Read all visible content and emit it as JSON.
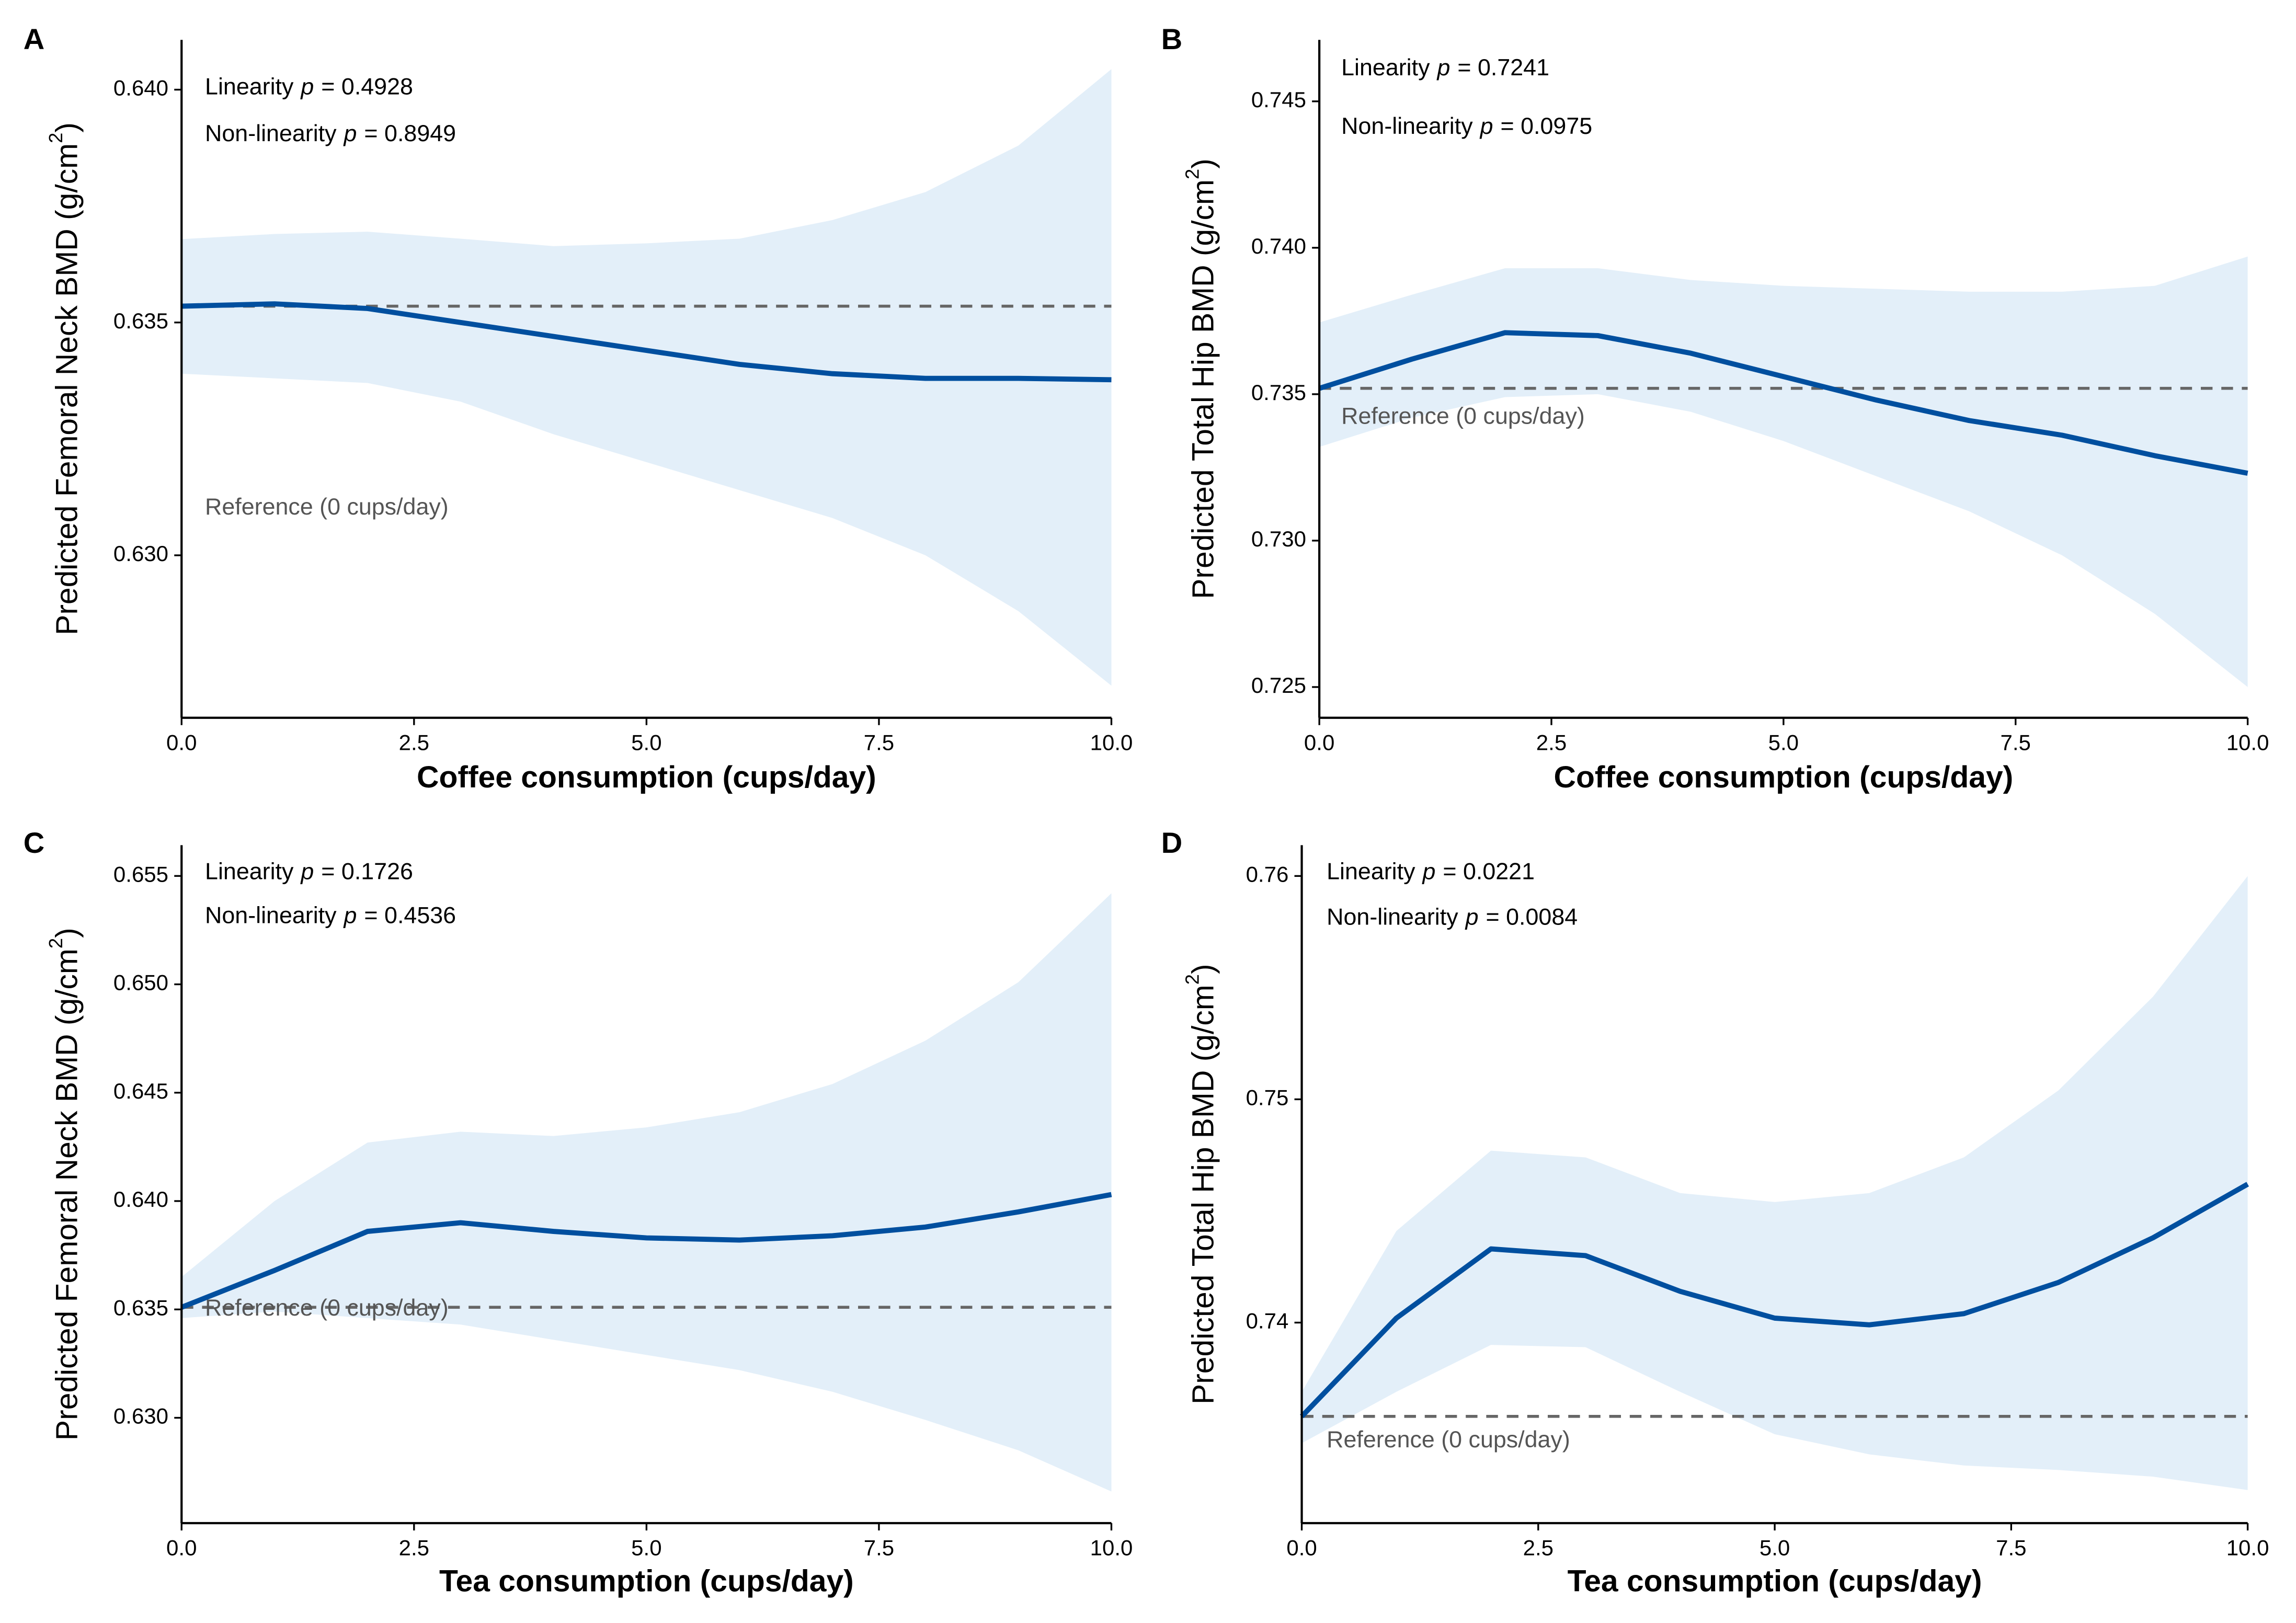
{
  "chart_data": [
    {
      "type": "line",
      "panel": "A",
      "xlabel": "Coffee consumption (cups/day)",
      "ylabel": {
        "text": "Predicted Femoral Neck BMD (g/cm",
        "sup": "2",
        "end": ")"
      },
      "annotations": [
        {
          "text": "Linearity",
          "p": "p",
          "value": "= 0.4928"
        },
        {
          "text": "Non-linearity",
          "p": "p",
          "value": "= 0.8949"
        }
      ],
      "reference_label": "Reference (0 cups/day)",
      "reference": 0.63535,
      "x": [
        0,
        1,
        2,
        3,
        4,
        5,
        6,
        7,
        8,
        9,
        10
      ],
      "values": [
        0.63535,
        0.6354,
        0.6353,
        0.635,
        0.6347,
        0.6344,
        0.6341,
        0.6339,
        0.6338,
        0.6338,
        0.63377
      ],
      "ci_upper": [
        0.63679,
        0.6369,
        0.63695,
        0.6368,
        0.63664,
        0.6367,
        0.6368,
        0.6372,
        0.6378,
        0.6388,
        0.64044
      ],
      "ci_lower": [
        0.6339,
        0.6338,
        0.6337,
        0.6333,
        0.6326,
        0.632,
        0.6314,
        0.6308,
        0.63,
        0.6288,
        0.6272
      ],
      "color": "#004f9f",
      "band_color": "#e3eff9",
      "reference_color": "#666666",
      "xlim": [
        0,
        10
      ],
      "ylim": [
        0.62651,
        0.64107
      ],
      "xticks": [
        {
          "value": 0,
          "label": "0.0"
        },
        2.5,
        {
          "value": 5,
          "label": "5.0"
        },
        7.5,
        {
          "value": 10,
          "label": "10.0"
        }
      ],
      "yticks": [
        {
          "value": 0.63,
          "label": "0.630"
        },
        0.635,
        {
          "value": 0.64,
          "label": "0.640"
        }
      ]
    },
    {
      "type": "line",
      "panel": "B",
      "xlabel": "Coffee consumption (cups/day)",
      "ylabel": {
        "text": "Predicted Total Hip BMD (g/cm",
        "sup": "2",
        "end": ")"
      },
      "annotations": [
        {
          "text": "Linearity",
          "p": "p",
          "value": "= 0.7241"
        },
        {
          "text": "Non-linearity",
          "p": "p",
          "value": "= 0.0975"
        }
      ],
      "reference_label": "Reference (0 cups/day)",
      "reference": 0.7352,
      "x": [
        0,
        1,
        2,
        3,
        4,
        5,
        6,
        7,
        8,
        9,
        10
      ],
      "values": [
        0.7352,
        0.7362,
        0.7371,
        0.737,
        0.7364,
        0.7356,
        0.7348,
        0.7341,
        0.7336,
        0.7329,
        0.7323
      ],
      "ci_upper": [
        0.73745,
        0.7384,
        0.7393,
        0.7393,
        0.7389,
        0.7387,
        0.7386,
        0.7385,
        0.7385,
        0.7387,
        0.7397
      ],
      "ci_lower": [
        0.7332,
        0.7342,
        0.7349,
        0.735,
        0.7344,
        0.7334,
        0.7322,
        0.731,
        0.7295,
        0.7275,
        0.725
      ],
      "color": "#004f9f",
      "band_color": "#e3eff9",
      "reference_color": "#666666",
      "xlim": [
        0,
        10
      ],
      "ylim": [
        0.72395,
        0.7471
      ],
      "xticks": [
        {
          "value": 0,
          "label": "0.0"
        },
        2.5,
        {
          "value": 5,
          "label": "5.0"
        },
        7.5,
        {
          "value": 10,
          "label": "10.0"
        }
      ],
      "yticks": [
        0.725,
        {
          "value": 0.73,
          "label": "0.730"
        },
        0.735,
        {
          "value": 0.74,
          "label": "0.740"
        },
        0.745
      ]
    },
    {
      "type": "line",
      "panel": "C",
      "xlabel": "Tea consumption (cups/day)",
      "ylabel": {
        "text": "Predicted Femoral Neck BMD (g/cm",
        "sup": "2",
        "end": ")"
      },
      "annotations": [
        {
          "text": "Linearity",
          "p": "p",
          "value": "= 0.1726"
        },
        {
          "text": "Non-linearity",
          "p": "p",
          "value": "= 0.4536"
        }
      ],
      "reference_label": "Reference (0 cups/day)",
      "reference": 0.6351,
      "x": [
        0,
        1,
        2,
        3,
        4,
        5,
        6,
        7,
        8,
        9,
        10
      ],
      "values": [
        0.6351,
        0.6368,
        0.6386,
        0.639,
        0.6386,
        0.6383,
        0.6382,
        0.6384,
        0.6388,
        0.6395,
        0.6403
      ],
      "ci_upper": [
        0.6365,
        0.64,
        0.6427,
        0.6432,
        0.643,
        0.6434,
        0.6441,
        0.6454,
        0.6474,
        0.6501,
        0.6542
      ],
      "ci_lower": [
        0.6346,
        0.6349,
        0.6346,
        0.6343,
        0.6336,
        0.6329,
        0.6322,
        0.6312,
        0.6299,
        0.6285,
        0.6266
      ],
      "color": "#004f9f",
      "band_color": "#e3eff9",
      "reference_color": "#666666",
      "xlim": [
        0,
        10
      ],
      "ylim": [
        0.62514,
        0.65642
      ],
      "xticks": [
        {
          "value": 0,
          "label": "0.0"
        },
        2.5,
        {
          "value": 5,
          "label": "5.0"
        },
        7.5,
        {
          "value": 10,
          "label": "10.0"
        }
      ],
      "yticks": [
        {
          "value": 0.63,
          "label": "0.630"
        },
        0.635,
        {
          "value": 0.64,
          "label": "0.640"
        },
        0.645,
        {
          "value": 0.65,
          "label": "0.650"
        },
        0.655
      ]
    },
    {
      "type": "line",
      "panel": "D",
      "xlabel": "Tea consumption (cups/day)",
      "ylabel": {
        "text": "Predicted Total Hip BMD (g/cm",
        "sup": "2",
        "end": ")"
      },
      "annotations": [
        {
          "text": "Linearity",
          "p": "p",
          "value": "= 0.0221"
        },
        {
          "text": "Non-linearity",
          "p": "p",
          "value": "= 0.0084"
        }
      ],
      "reference_label": "Reference (0 cups/day)",
      "reference": 0.7358,
      "x": [
        0,
        1,
        2,
        3,
        4,
        5,
        6,
        7,
        8,
        9,
        10
      ],
      "values": [
        0.7358,
        0.7402,
        0.7433,
        0.743,
        0.7414,
        0.7402,
        0.7399,
        0.7404,
        0.7418,
        0.7438,
        0.7462
      ],
      "ci_upper": [
        0.7369,
        0.7441,
        0.7477,
        0.7474,
        0.7458,
        0.7454,
        0.7458,
        0.7474,
        0.7504,
        0.7546,
        0.76
      ],
      "ci_lower": [
        0.7346,
        0.7369,
        0.739,
        0.7389,
        0.7369,
        0.735,
        0.7341,
        0.7336,
        0.7334,
        0.7331,
        0.7325
      ],
      "color": "#004f9f",
      "band_color": "#e3eff9",
      "reference_color": "#666666",
      "xlim": [
        0,
        10
      ],
      "ylim": [
        0.73102,
        0.76138
      ],
      "xticks": [
        {
          "value": 0,
          "label": "0.0"
        },
        2.5,
        {
          "value": 5,
          "label": "5.0"
        },
        7.5,
        {
          "value": 10,
          "label": "10.0"
        }
      ],
      "yticks": [
        0.74,
        0.75,
        0.76
      ]
    }
  ]
}
